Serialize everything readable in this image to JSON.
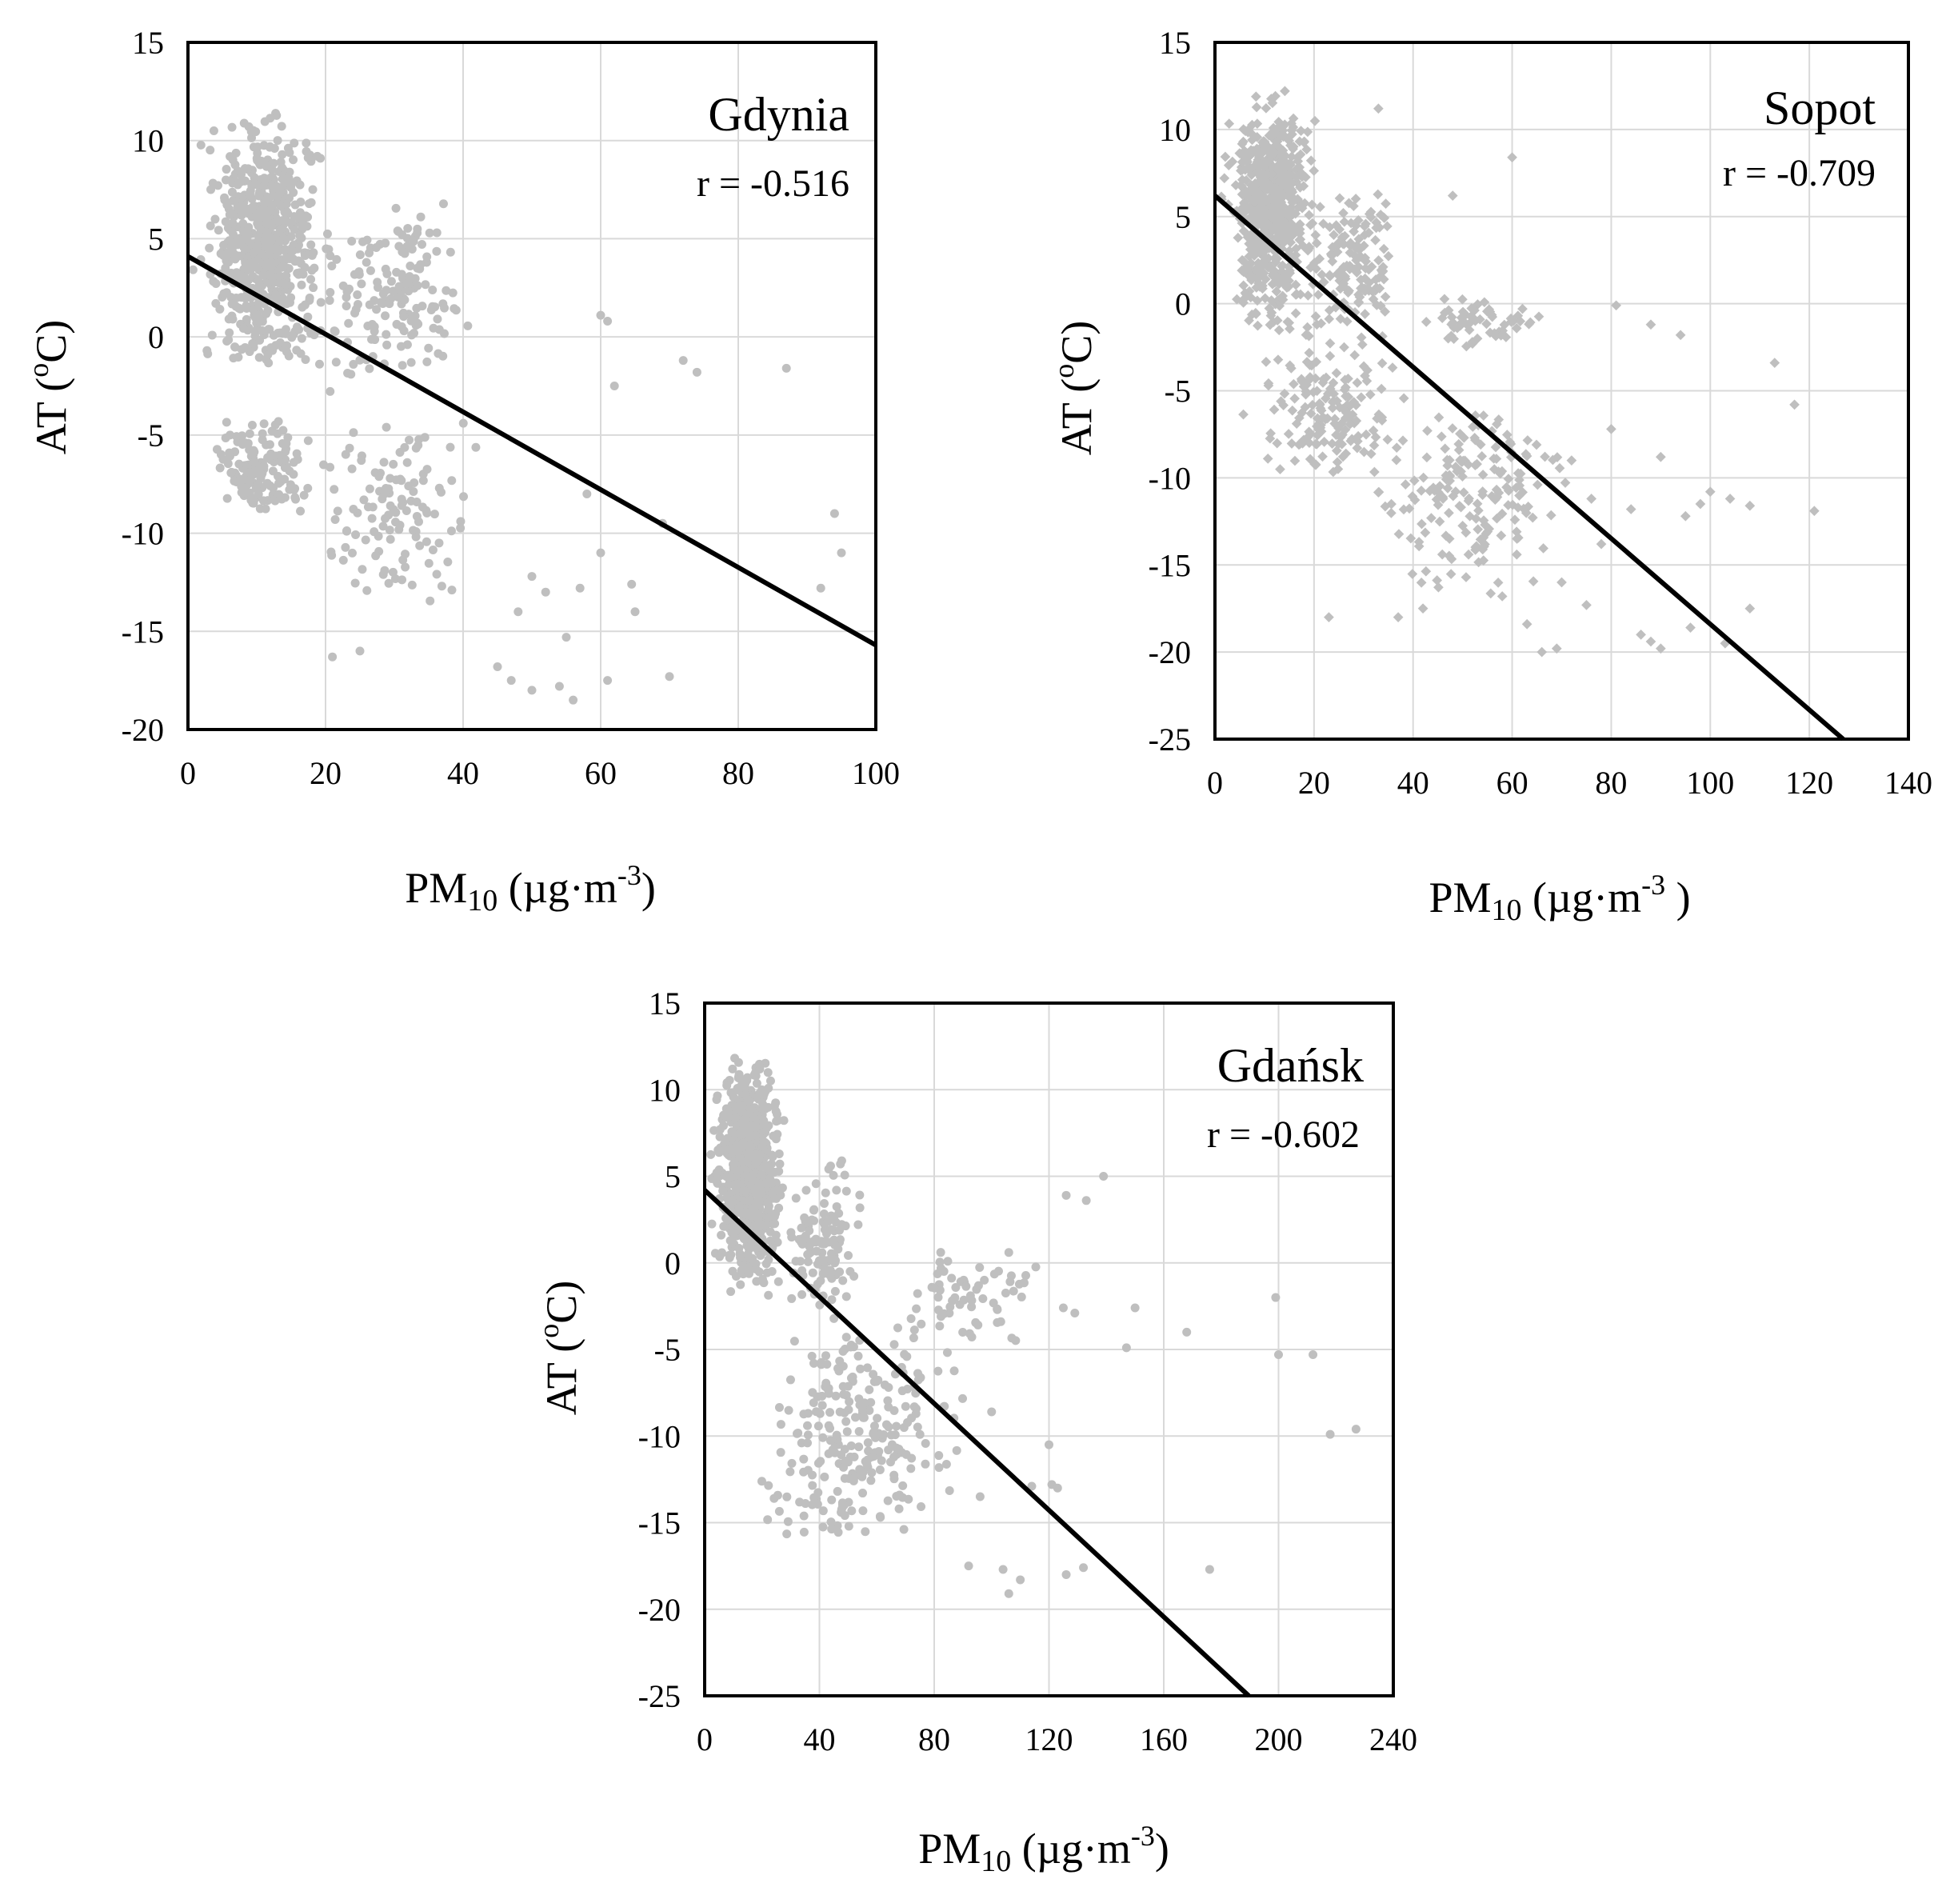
{
  "chart_data": [
    {
      "type": "scatter",
      "title": "Gdynia",
      "correlation": "r = -0.516",
      "xlabel": {
        "base": "PM",
        "sub": "10",
        "unit_pre": " (µg·m",
        "sup": "-3",
        "unit_post": ")"
      },
      "ylabel": {
        "pre": "AT (",
        "sup": "o",
        "post": "C)"
      },
      "xlim": [
        0,
        100
      ],
      "ylim": [
        -20,
        15
      ],
      "xticks": [
        0,
        20,
        40,
        60,
        80,
        100
      ],
      "yticks": [
        -20,
        -15,
        -10,
        -5,
        0,
        5,
        10,
        15
      ],
      "grid": true,
      "point_color": "#bfbfbf",
      "marker": "circle",
      "regression": {
        "intercept": 4.1,
        "slope": -0.198
      },
      "clusters": [
        {
          "n": 650,
          "x": [
            0,
            22
          ],
          "y": [
            -2.0,
            11.5
          ]
        },
        {
          "n": 160,
          "x": [
            15,
            45
          ],
          "y": [
            -3.0,
            7.0
          ]
        },
        {
          "n": 140,
          "x": [
            2,
            20
          ],
          "y": [
            -9.5,
            -4.0
          ]
        },
        {
          "n": 120,
          "x": [
            16,
            45
          ],
          "y": [
            -14.0,
            -4.0
          ]
        }
      ],
      "outliers": [
        [
          60,
          1.1
        ],
        [
          61,
          0.8
        ],
        [
          72,
          -1.2
        ],
        [
          74,
          -1.8
        ],
        [
          87,
          -1.6
        ],
        [
          62,
          -2.5
        ],
        [
          94,
          -9.0
        ],
        [
          95,
          -11.0
        ],
        [
          69,
          -9.5
        ],
        [
          92,
          -12.8
        ],
        [
          65,
          -14.0
        ],
        [
          64.5,
          -12.6
        ],
        [
          70,
          -17.3
        ],
        [
          61,
          -17.5
        ],
        [
          56,
          -18.5
        ],
        [
          54,
          -17.8
        ],
        [
          50,
          -18.0
        ],
        [
          47,
          -17.5
        ],
        [
          45,
          -16.8
        ],
        [
          21,
          -16.3
        ],
        [
          25,
          -16.0
        ],
        [
          57,
          -12.8
        ],
        [
          60,
          -11.0
        ],
        [
          55,
          -15.3
        ],
        [
          48,
          -14.0
        ],
        [
          52,
          -13.0
        ],
        [
          50,
          -12.2
        ],
        [
          58,
          -8.0
        ]
      ]
    },
    {
      "type": "scatter",
      "title": "Sopot",
      "correlation": "r = -0.709",
      "xlabel": {
        "base": "PM",
        "sub": "10",
        "unit_pre": " (µg·m",
        "sup": "-3",
        "unit_post": " )"
      },
      "ylabel": {
        "pre": "AT (",
        "sup": "o",
        "post": "C)"
      },
      "xlim": [
        0,
        140
      ],
      "ylim": [
        -25,
        15
      ],
      "xticks": [
        0,
        20,
        40,
        60,
        80,
        100,
        120,
        140
      ],
      "yticks": [
        -25,
        -20,
        -15,
        -10,
        -5,
        0,
        5,
        10,
        15
      ],
      "grid": true,
      "point_color": "#bfbfbf",
      "marker": "diamond",
      "regression": {
        "intercept": 6.2,
        "slope": -0.246
      },
      "clusters": [
        {
          "n": 650,
          "x": [
            0,
            22
          ],
          "y": [
            -2.0,
            12.5
          ]
        },
        {
          "n": 150,
          "x": [
            15,
            40
          ],
          "y": [
            -3.0,
            7.0
          ]
        },
        {
          "n": 160,
          "x": [
            5,
            40
          ],
          "y": [
            -10.0,
            -2.0
          ]
        },
        {
          "n": 180,
          "x": [
            28,
            75
          ],
          "y": [
            -17.0,
            -5.0
          ]
        },
        {
          "n": 60,
          "x": [
            40,
            70
          ],
          "y": [
            -2.5,
            0.5
          ]
        }
      ],
      "outliers": [
        [
          60,
          8.4
        ],
        [
          33,
          11.2
        ],
        [
          48,
          6.2
        ],
        [
          81,
          -0.1
        ],
        [
          88,
          -1.2
        ],
        [
          94,
          -1.8
        ],
        [
          113,
          -3.4
        ],
        [
          117,
          -5.8
        ],
        [
          80,
          -7.2
        ],
        [
          90,
          -8.8
        ],
        [
          100,
          -10.8
        ],
        [
          104,
          -11.2
        ],
        [
          98,
          -11.5
        ],
        [
          108,
          -11.6
        ],
        [
          121,
          -11.9
        ],
        [
          84,
          -11.8
        ],
        [
          95,
          -12.2
        ],
        [
          72,
          -9.0
        ],
        [
          66,
          -20.0
        ],
        [
          69,
          -19.8
        ],
        [
          63,
          -18.4
        ],
        [
          108,
          -17.5
        ],
        [
          86,
          -19.0
        ],
        [
          90,
          -19.8
        ],
        [
          96,
          -18.6
        ],
        [
          103,
          -19.5
        ],
        [
          88,
          -19.4
        ],
        [
          58,
          -16.8
        ],
        [
          70,
          -16.0
        ],
        [
          75,
          -17.3
        ],
        [
          37,
          -18.0
        ],
        [
          23,
          -18.0
        ],
        [
          42,
          -17.5
        ],
        [
          78,
          -13.8
        ],
        [
          76,
          -11.2
        ]
      ]
    },
    {
      "type": "scatter",
      "title": "Gdańsk",
      "correlation": "r = -0.602",
      "xlabel": {
        "base": "PM",
        "sub": "10",
        "unit_pre": " (µg·m",
        "sup": "-3",
        "unit_post": ")"
      },
      "ylabel": {
        "pre": "AT (",
        "sup": "o",
        "post": "C)"
      },
      "xlim": [
        0,
        240
      ],
      "ylim": [
        -25,
        15
      ],
      "xticks": [
        0,
        40,
        80,
        120,
        160,
        200,
        240
      ],
      "yticks": [
        -25,
        -20,
        -15,
        -10,
        -5,
        0,
        5,
        10,
        15
      ],
      "grid": true,
      "point_color": "#bfbfbf",
      "marker": "circle",
      "regression": {
        "intercept": 4.2,
        "slope": -0.154
      },
      "clusters": [
        {
          "n": 700,
          "x": [
            0,
            30
          ],
          "y": [
            -2.0,
            12.0
          ]
        },
        {
          "n": 120,
          "x": [
            25,
            60
          ],
          "y": [
            -3.0,
            6.0
          ]
        },
        {
          "n": 260,
          "x": [
            12,
            95
          ],
          "y": [
            -17.0,
            -3.0
          ]
        },
        {
          "n": 60,
          "x": [
            60,
            125
          ],
          "y": [
            -5.0,
            1.0
          ]
        }
      ],
      "outliers": [
        [
          139,
          5.0
        ],
        [
          133,
          3.6
        ],
        [
          126,
          3.9
        ],
        [
          125,
          -2.6
        ],
        [
          129,
          -2.9
        ],
        [
          150,
          -2.6
        ],
        [
          147,
          -4.9
        ],
        [
          168,
          -4.0
        ],
        [
          199,
          -2.0
        ],
        [
          200,
          -5.3
        ],
        [
          212,
          -5.3
        ],
        [
          218,
          -9.9
        ],
        [
          227,
          -9.6
        ],
        [
          176,
          -17.7
        ],
        [
          120,
          -10.5
        ],
        [
          114,
          -12.9
        ],
        [
          121,
          -12.8
        ],
        [
          123,
          -13.0
        ],
        [
          126,
          -18.0
        ],
        [
          132,
          -17.6
        ],
        [
          106,
          -19.1
        ],
        [
          104,
          -17.7
        ],
        [
          110,
          -18.3
        ],
        [
          92,
          -17.5
        ],
        [
          96,
          -13.5
        ],
        [
          100,
          -8.6
        ],
        [
          106,
          0.6
        ],
        [
          102,
          -2.7
        ]
      ]
    }
  ]
}
